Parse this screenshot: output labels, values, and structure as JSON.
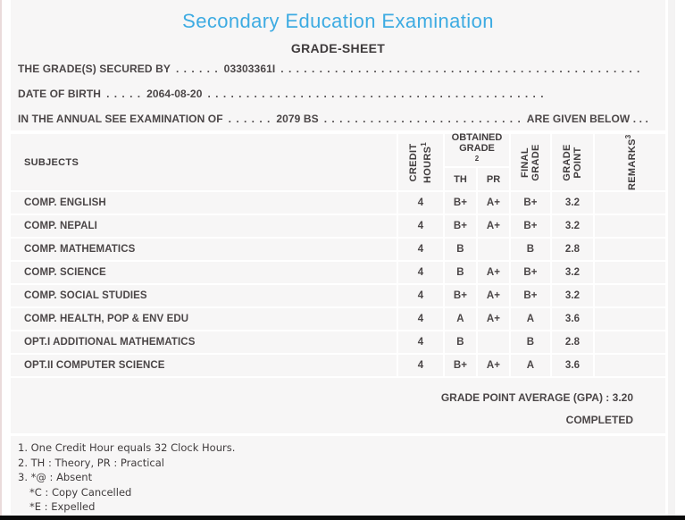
{
  "colors": {
    "accent_blue": "#3dabe2",
    "panel_bg": "#f7f6f6",
    "text": "#4b4647",
    "bottom_bar": "#0b0b0b"
  },
  "header": {
    "title": "Secondary Education Examination",
    "subtitle": "GRADE-SHEET"
  },
  "info": {
    "line1": {
      "label": "THE GRADE(S) SECURED BY",
      "dots_a": ". . . . . .",
      "value": "03303361I",
      "dots_b": ". . . . . . . . . . . . . . . . . . . . . . . . . . . . . . . . . . . . . . . . . . . . . . ."
    },
    "line2": {
      "label": "DATE OF BIRTH",
      "dots_a": ". . . . .",
      "value": "2064-08-20",
      "dots_b": ". . . . . . . . . . . . . . . . . . . . . . . . . . . . . . . . . . . . . . . . . . . ."
    },
    "line3": {
      "label": "IN THE ANNUAL SEE EXAMINATION OF",
      "dots_a": ". . . . . .",
      "value": "2079 BS",
      "dots_b": ". . . . . . . . . . . . . . . . . . . . . . . . . .",
      "suffix": "ARE GIVEN BELOW . . ."
    }
  },
  "table": {
    "headers": {
      "subjects": "SUBJECTS",
      "credit_hours": "CREDIT HOURS",
      "credit_hours_sup": "1",
      "obtained_grade": "OBTAINED GRADE",
      "obtained_grade_sup": "2",
      "th": "TH",
      "pr": "PR",
      "final_grade": "FINAL GRADE",
      "grade_point": "GRADE POINT",
      "remarks": "REMARKS",
      "remarks_sup": "3"
    },
    "rows": [
      {
        "subject": "COMP. ENGLISH",
        "credit": "4",
        "th": "B+",
        "pr": "A+",
        "final": "B+",
        "point": "3.2",
        "remarks": ""
      },
      {
        "subject": "COMP. NEPALI",
        "credit": "4",
        "th": "B+",
        "pr": "A+",
        "final": "B+",
        "point": "3.2",
        "remarks": ""
      },
      {
        "subject": "COMP. MATHEMATICS",
        "credit": "4",
        "th": "B",
        "pr": "",
        "final": "B",
        "point": "2.8",
        "remarks": ""
      },
      {
        "subject": "COMP. SCIENCE",
        "credit": "4",
        "th": "B",
        "pr": "A+",
        "final": "B+",
        "point": "3.2",
        "remarks": ""
      },
      {
        "subject": "COMP. SOCIAL STUDIES",
        "credit": "4",
        "th": "B+",
        "pr": "A+",
        "final": "B+",
        "point": "3.2",
        "remarks": ""
      },
      {
        "subject": "COMP. HEALTH, POP & ENV EDU",
        "credit": "4",
        "th": "A",
        "pr": "A+",
        "final": "A",
        "point": "3.6",
        "remarks": ""
      },
      {
        "subject": "OPT.I ADDITIONAL MATHEMATICS",
        "credit": "4",
        "th": "B",
        "pr": "",
        "final": "B",
        "point": "2.8",
        "remarks": ""
      },
      {
        "subject": "OPT.II COMPUTER SCIENCE",
        "credit": "4",
        "th": "B+",
        "pr": "A+",
        "final": "A",
        "point": "3.6",
        "remarks": ""
      }
    ]
  },
  "summary": {
    "gpa_label": "GRADE POINT AVERAGE (GPA) :",
    "gpa_value": "3.20",
    "status": "COMPLETED"
  },
  "footnotes": {
    "note1": "1. One Credit Hour equals 32 Clock Hours.",
    "note2": "2. TH : Theory, PR : Practical",
    "note3": "3. *@ : Absent",
    "note3b": "*C : Copy Cancelled",
    "note3c": "*E : Expelled"
  }
}
